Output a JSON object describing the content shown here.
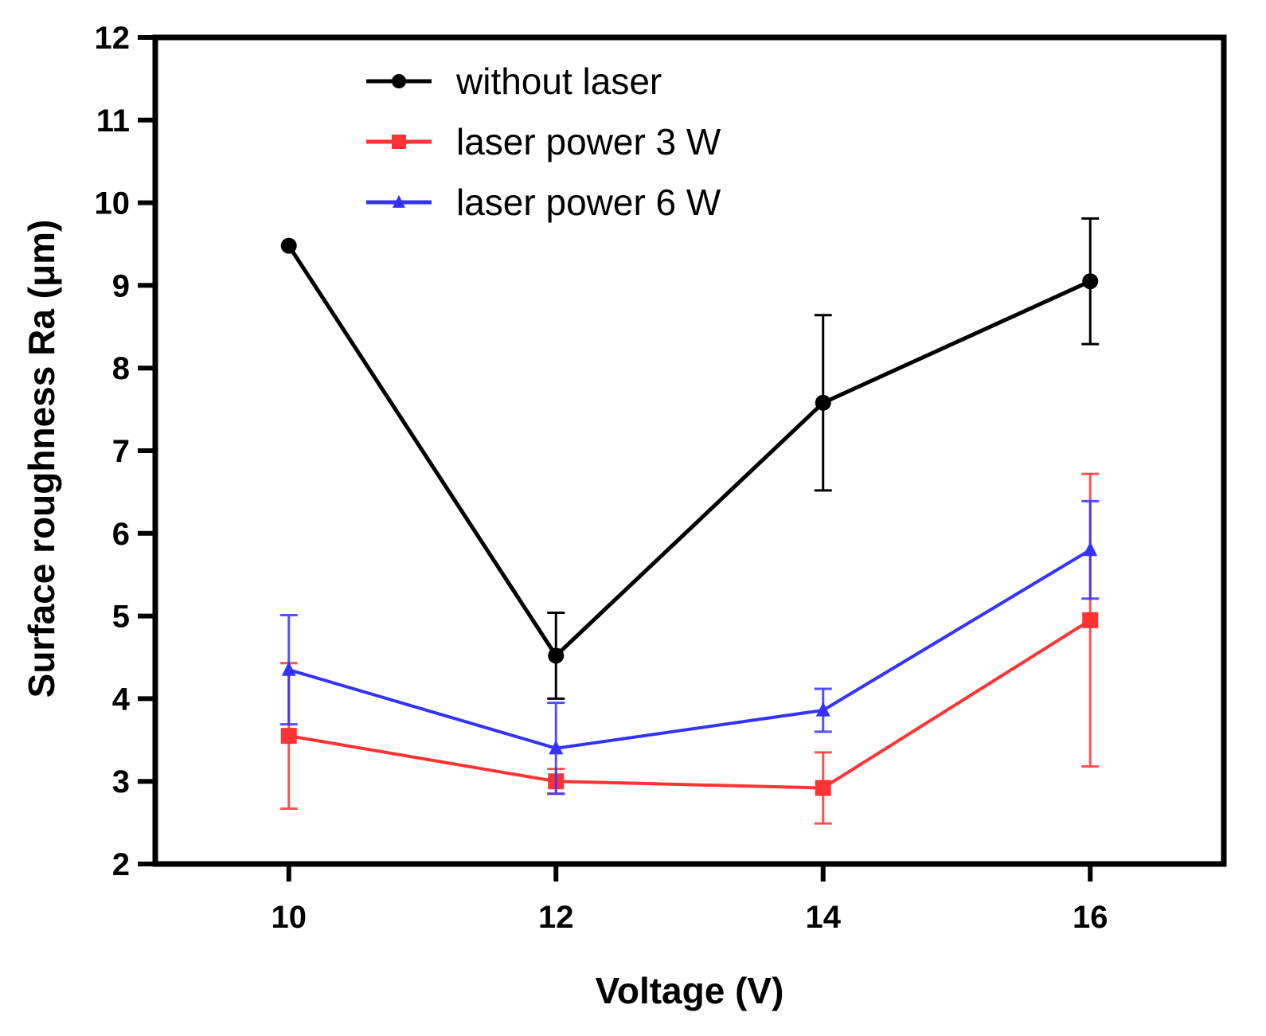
{
  "chart_data": {
    "type": "line",
    "title": "",
    "xlabel": "Voltage (V)",
    "ylabel": "Surface roughness Ra (μm)",
    "xlim": [
      9,
      17
    ],
    "ylim": [
      2,
      12
    ],
    "x": [
      10,
      12,
      14,
      16
    ],
    "xticks": [
      "10",
      "12",
      "14",
      "16"
    ],
    "yticks": [
      "2",
      "3",
      "4",
      "5",
      "6",
      "7",
      "8",
      "9",
      "10",
      "11",
      "12"
    ],
    "grid": false,
    "legend_position": "top-center",
    "series": [
      {
        "name": "without laser",
        "color": "#000000",
        "marker": "circle",
        "values": [
          9.48,
          4.52,
          7.58,
          9.05
        ],
        "errors": [
          0.0,
          0.52,
          1.06,
          0.76
        ]
      },
      {
        "name": "laser power 3 W",
        "color": "#ff3333",
        "marker": "square",
        "values": [
          3.55,
          3.0,
          2.92,
          4.95
        ],
        "errors": [
          0.88,
          0.15,
          0.43,
          1.77
        ]
      },
      {
        "name": "laser power 6 W",
        "color": "#3333ff",
        "marker": "triangle",
        "values": [
          4.35,
          3.4,
          3.86,
          5.8
        ],
        "errors": [
          0.66,
          0.55,
          0.26,
          0.59
        ]
      }
    ]
  }
}
